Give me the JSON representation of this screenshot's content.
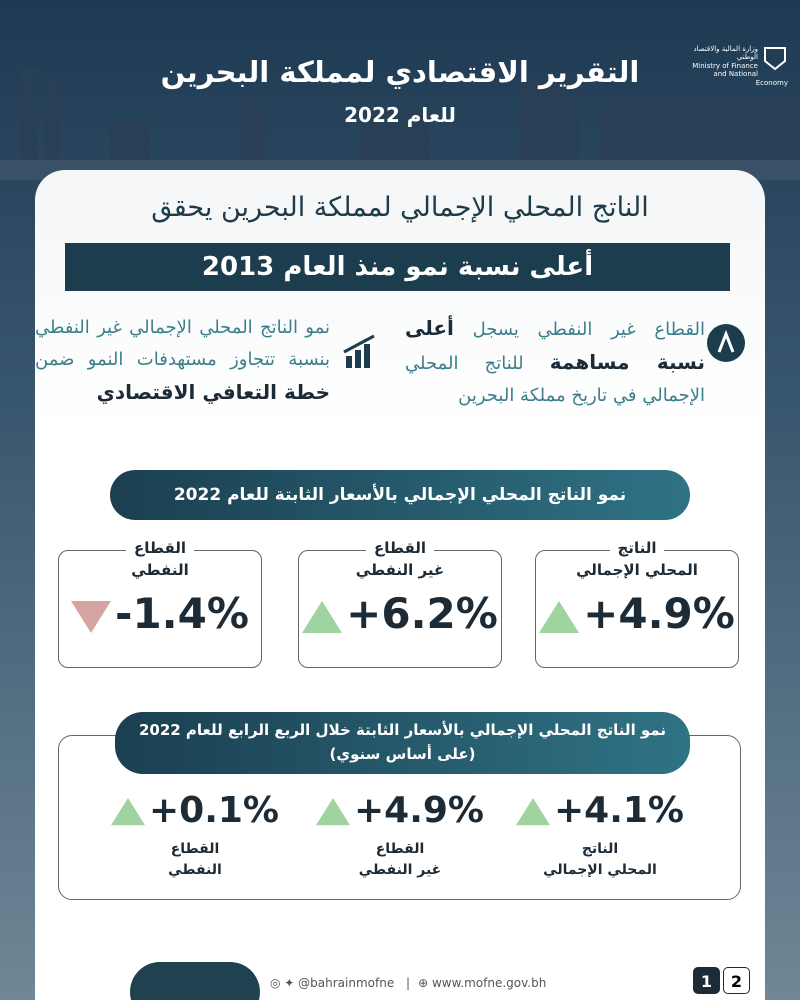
{
  "header": {
    "title": "التقرير الاقتصادي لمملكة البحرين",
    "subtitle": "للعام 2022",
    "logo_ar": "وزارة المالية والاقتصاد الوطني",
    "logo_en": "Ministry of Finance and National Economy"
  },
  "headline": {
    "line1": "الناتج المحلي الإجمالي لمملكة البحرين يحقق",
    "line2": "أعلى نسبة نمو منذ العام 2013"
  },
  "highlights": [
    {
      "parts": [
        {
          "text": "القطاع غير النفطي يسجل ",
          "bold": false
        },
        {
          "text": "أعلى نسبة مساهمة",
          "bold": true
        },
        {
          "text": " للناتج المحلي الإجمالي في تاريخ مملكة البحرين",
          "bold": false
        }
      ]
    },
    {
      "parts": [
        {
          "text": "نمو الناتج المحلي الإجمالي غير النفطي بنسبة تتجاوز مستهدفات النمو ضمن ",
          "bold": false
        },
        {
          "text": "خطة التعافي الاقتصادي",
          "bold": true
        }
      ]
    }
  ],
  "annual": {
    "title": "نمو الناتج المحلي الإجمالي بالأسعار الثابتة للعام 2022",
    "items": [
      {
        "label": [
          "الناتج",
          "المحلي الإجمالي"
        ],
        "value": "+4.9%",
        "trend": "up"
      },
      {
        "label": [
          "القطاع",
          "غير النفطي"
        ],
        "value": "+6.2%",
        "trend": "up"
      },
      {
        "label": [
          "القطاع",
          "النفطي"
        ],
        "value": "-1.4%",
        "trend": "down"
      }
    ]
  },
  "quarterly": {
    "title": "نمو الناتج المحلي الإجمالي بالأسعار الثابتة خلال الربع الرابع للعام 2022",
    "subtitle": "(على أساس سنوي)",
    "items": [
      {
        "label": [
          "الناتج",
          "المحلي الإجمالي"
        ],
        "value": "+4.1%",
        "trend": "up"
      },
      {
        "label": [
          "القطاع",
          "غير النفطي"
        ],
        "value": "+4.9%",
        "trend": "up"
      },
      {
        "label": [
          "القطاع",
          "النفطي"
        ],
        "value": "+0.1%",
        "trend": "up"
      }
    ]
  },
  "footer": {
    "social": "@bahrainmofne",
    "website": "www.mofne.gov.bh",
    "pages": [
      "1",
      "2"
    ]
  }
}
